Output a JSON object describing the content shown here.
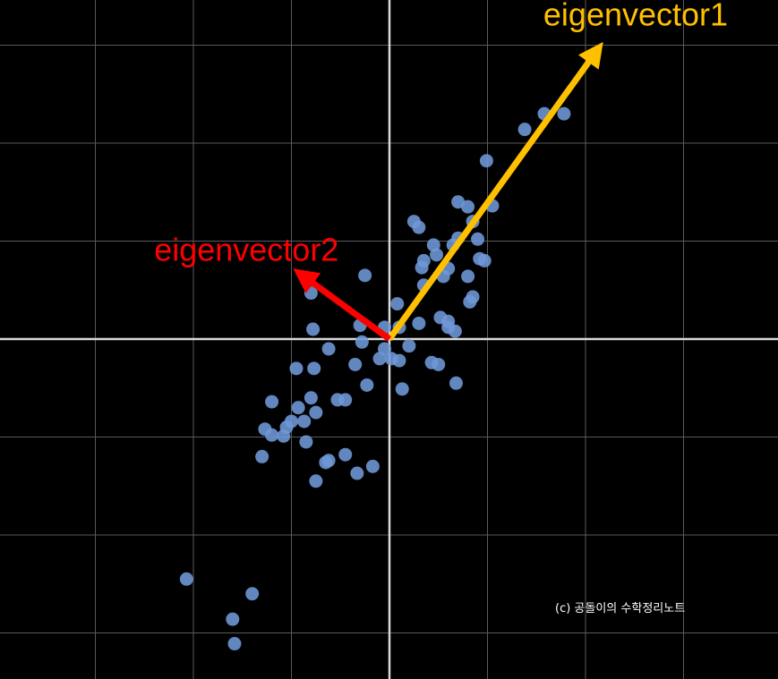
{
  "watermark": "(c) 공돌이의 수학정리노트",
  "colors": {
    "background": "#000000",
    "grid": "#5a5a5a",
    "axis": "#d9d9d9",
    "points": "#6f98d8",
    "eigenvector1": "#ffc000",
    "eigenvector2": "#ff0000"
  },
  "chart_data": {
    "type": "scatter",
    "title": "",
    "xlabel": "",
    "ylabel": "",
    "xlim": [
      -4,
      4
    ],
    "ylim": [
      -3.5,
      3.5
    ],
    "grid": true,
    "grid_step": 1,
    "series": [
      {
        "values": [
          [
            1.58,
            2.3
          ],
          [
            1.78,
            2.3
          ],
          [
            1.38,
            2.14
          ],
          [
            0.99,
            1.82
          ],
          [
            1.05,
            1.36
          ],
          [
            0.7,
            1.4
          ],
          [
            0.8,
            1.35
          ],
          [
            0.85,
            1.2
          ],
          [
            0.25,
            1.2
          ],
          [
            0.3,
            1.14
          ],
          [
            0.7,
            1.03
          ],
          [
            0.9,
            1.02
          ],
          [
            0.65,
            0.96
          ],
          [
            0.45,
            0.96
          ],
          [
            0.48,
            0.86
          ],
          [
            0.92,
            0.82
          ],
          [
            0.35,
            0.8
          ],
          [
            0.33,
            0.73
          ],
          [
            0.97,
            0.8
          ],
          [
            0.6,
            0.72
          ],
          [
            0.55,
            0.64
          ],
          [
            0.8,
            0.64
          ],
          [
            0.35,
            0.55
          ],
          [
            0.85,
            0.43
          ],
          [
            0.82,
            0.38
          ],
          [
            0.52,
            0.22
          ],
          [
            0.6,
            0.18
          ],
          [
            0.3,
            0.16
          ],
          [
            0.6,
            0.12
          ],
          [
            0.67,
            0.08
          ],
          [
            0.08,
            0.36
          ],
          [
            -0.25,
            0.65
          ],
          [
            -0.8,
            0.47
          ],
          [
            -0.3,
            0.14
          ],
          [
            -0.05,
            0.12
          ],
          [
            0.1,
            0.12
          ],
          [
            -0.78,
            0.1
          ],
          [
            -0.28,
            -0.03
          ],
          [
            -0.62,
            -0.1
          ],
          [
            -0.05,
            -0.1
          ],
          [
            0.2,
            -0.07
          ],
          [
            0.02,
            -0.2
          ],
          [
            0.1,
            -0.22
          ],
          [
            -0.35,
            -0.26
          ],
          [
            -0.1,
            -0.2
          ],
          [
            -0.95,
            -0.3
          ],
          [
            -0.77,
            -0.3
          ],
          [
            0.43,
            -0.24
          ],
          [
            0.5,
            -0.26
          ],
          [
            -0.23,
            -0.47
          ],
          [
            0.13,
            -0.51
          ],
          [
            0.68,
            -0.45
          ],
          [
            -1.2,
            -0.64
          ],
          [
            -0.8,
            -0.6
          ],
          [
            -0.53,
            -0.62
          ],
          [
            -0.45,
            -0.62
          ],
          [
            -0.93,
            -0.7
          ],
          [
            -0.75,
            -0.75
          ],
          [
            -0.87,
            -0.84
          ],
          [
            -1.0,
            -0.84
          ],
          [
            -1.05,
            -0.9
          ],
          [
            -1.27,
            -0.92
          ],
          [
            -1.2,
            -0.98
          ],
          [
            -1.08,
            -0.99
          ],
          [
            -0.85,
            -1.05
          ],
          [
            -1.3,
            -1.2
          ],
          [
            -0.45,
            -1.18
          ],
          [
            -0.62,
            -1.24
          ],
          [
            -0.65,
            -1.26
          ],
          [
            -0.17,
            -1.3
          ],
          [
            -0.33,
            -1.37
          ],
          [
            -0.75,
            -1.45
          ],
          [
            -2.07,
            -2.45
          ],
          [
            -1.4,
            -2.6
          ],
          [
            -1.6,
            -2.86
          ],
          [
            -1.58,
            -3.11
          ]
        ]
      }
    ],
    "vectors": [
      {
        "name": "eigenvector1",
        "label": "eigenvector1",
        "color": "#ffc000",
        "from": [
          0,
          0
        ],
        "to": [
          2.12,
          2.95
        ]
      },
      {
        "name": "eigenvector2",
        "label": "eigenvector2",
        "color": "#ff0000",
        "from": [
          0,
          0
        ],
        "to": [
          -0.9,
          0.66
        ]
      }
    ],
    "labels": [
      {
        "text": "eigenvector1",
        "color": "#ffc000",
        "at": [
          1.57,
          3.2
        ]
      },
      {
        "text": "eigenvector2",
        "color": "#ff0000",
        "at": [
          -2.4,
          0.8
        ]
      }
    ]
  }
}
